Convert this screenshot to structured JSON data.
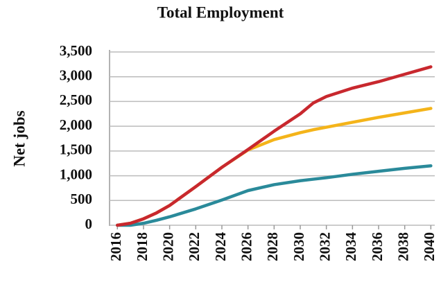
{
  "chart_data": {
    "type": "line",
    "title": "Total Employment",
    "y_label": "Net jobs",
    "x": [
      2016,
      2017,
      2018,
      2019,
      2020,
      2022,
      2024,
      2026,
      2028,
      2030,
      2031,
      2032,
      2034,
      2036,
      2038,
      2040
    ],
    "series": [
      {
        "color": "#f4b41a",
        "values": [
          0,
          40,
          130,
          250,
          400,
          780,
          1170,
          1520,
          1730,
          1870,
          1930,
          1980,
          2080,
          2180,
          2270,
          2360
        ]
      },
      {
        "color": "#2a8a9a",
        "values": [
          0,
          0,
          40,
          100,
          170,
          330,
          510,
          700,
          820,
          900,
          930,
          960,
          1030,
          1090,
          1150,
          1200
        ]
      },
      {
        "color": "#c8282e",
        "values": [
          0,
          40,
          130,
          250,
          400,
          780,
          1170,
          1530,
          1900,
          2250,
          2470,
          2600,
          2770,
          2900,
          3050,
          3200
        ]
      }
    ],
    "xlim": [
      2015.4,
      2040.3
    ],
    "xticks": [
      2016,
      2018,
      2020,
      2022,
      2024,
      2026,
      2028,
      2030,
      2032,
      2034,
      2036,
      2038,
      2040
    ],
    "ylim": [
      0,
      3500
    ],
    "yticks": [
      0,
      500,
      {
        "value": 1000,
        "label": "1,000"
      },
      {
        "value": 1500,
        "label": "1,500"
      },
      {
        "value": 2000,
        "label": "2,000"
      },
      {
        "value": 2500,
        "label": "2,500"
      },
      {
        "value": 3000,
        "label": "3,000"
      },
      {
        "value": 3500,
        "label": "3,500"
      }
    ],
    "grid": true
  }
}
